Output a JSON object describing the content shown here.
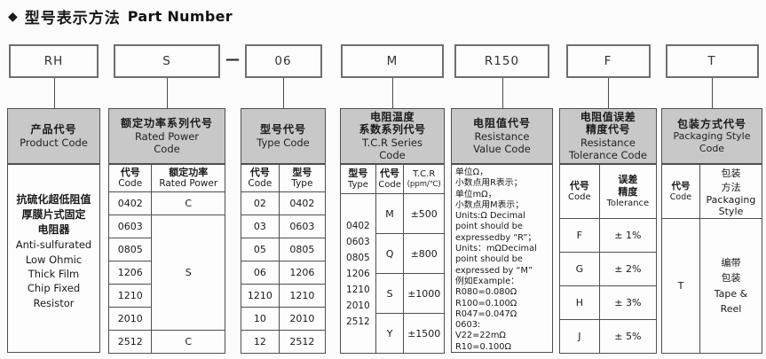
{
  "title": {
    "icon": "◆",
    "zh": "型号表示方法",
    "en": "Part Number"
  },
  "separator": "—",
  "colors": {
    "header_bg": "#c8c8c8",
    "border": "#4f4f4f",
    "page_bg": "#fcfcfc",
    "text": "#1a1a1a"
  },
  "columns": {
    "product": {
      "code": "RH",
      "header": {
        "zh": "产品代号",
        "en": "Product Code"
      },
      "body_lines": [
        "抗硫化超低阻值",
        "厚膜片式固定",
        "电阻器",
        "Anti-sulfurated",
        "Low Ohmic",
        "Thick Film",
        "Chip Fixed",
        "Resistor"
      ]
    },
    "rated_power": {
      "code": "S",
      "header": {
        "zh": "额定功率系列代号",
        "en1": "Rated Power",
        "en2": "Code"
      },
      "col_headers": {
        "code_zh": "代号",
        "code_en": "Code",
        "power_zh": "额定功率",
        "power_en": "Rated Power"
      },
      "rows": [
        {
          "code": "0402",
          "power": "C"
        },
        {
          "code": "0603"
        },
        {
          "code": "0805"
        },
        {
          "code": "1206"
        },
        {
          "code": "1210"
        },
        {
          "code": "2010"
        },
        {
          "code": "2512",
          "power": "C"
        }
      ],
      "merged_power": "S"
    },
    "type_code": {
      "code": "06",
      "header": {
        "zh": "型号代号",
        "en": "Type Code"
      },
      "col_headers": {
        "code_zh": "代号",
        "code_en": "Code",
        "type_zh": "型号",
        "type_en": "Type"
      },
      "rows": [
        {
          "code": "02",
          "type": "0402"
        },
        {
          "code": "03",
          "type": "0603"
        },
        {
          "code": "05",
          "type": "0805"
        },
        {
          "code": "06",
          "type": "1206"
        },
        {
          "code": "1210",
          "type": "1210"
        },
        {
          "code": "10",
          "type": "2010"
        },
        {
          "code": "12",
          "type": "2512"
        }
      ]
    },
    "tcr": {
      "code": "M",
      "header": {
        "zh1": "电阻温度",
        "zh2": "系数系列代号",
        "en1": "T.C.R Series",
        "en2": "Code"
      },
      "col_headers": {
        "type_zh": "型号",
        "type_en": "Type",
        "code_zh": "代号",
        "code_en": "Code",
        "tcr_label": "T.C.R",
        "tcr_unit": "(ppm/℃)"
      },
      "types": [
        "0402",
        "0603",
        "0805",
        "1206",
        "1210",
        "2010",
        "2512"
      ],
      "rows": [
        {
          "code": "M",
          "tcr": "±500"
        },
        {
          "code": "Q",
          "tcr": "±800"
        },
        {
          "code": "S",
          "tcr": "±1000"
        },
        {
          "code": "Y",
          "tcr": "±1500"
        }
      ]
    },
    "resistance_value": {
      "code": "R150",
      "header": {
        "zh": "电阻值代号",
        "en1": "Resistance",
        "en2": "Value Code"
      },
      "body_lines": [
        "单位Ω，",
        "小数点用R表示；",
        "单位mΩ，",
        "小数点用M表示；",
        "Units:Ω Decimal",
        "point should be",
        "expressedby “R”；",
        "Units：mΩDecimal",
        "point should be",
        "expressed by “M”",
        "例如Example：",
        "R080=0.080Ω",
        "R100=0.100Ω",
        "R047=0.047Ω",
        "0603:",
        "V22=22mΩ",
        "R10=0.100Ω"
      ]
    },
    "tolerance": {
      "code": "F",
      "header": {
        "zh1": "电阻值误差",
        "zh2": "精度代号",
        "en1": "Resistance",
        "en2": "Tolerance Code"
      },
      "col_headers": {
        "code_zh": "代号",
        "code_en": "Code",
        "tol_zh1": "误差",
        "tol_zh2": "精度",
        "tol_en": "Tolerance"
      },
      "rows": [
        {
          "code": "F",
          "tol": "± 1%"
        },
        {
          "code": "G",
          "tol": "± 2%"
        },
        {
          "code": "H",
          "tol": "± 3%"
        },
        {
          "code": "J",
          "tol": "± 5%"
        }
      ]
    },
    "packaging": {
      "code": "T",
      "header": {
        "zh": "包装方式代号",
        "en1": "Packaging Style",
        "en2": "Code"
      },
      "col_headers": {
        "code_zh": "代号",
        "code_en": "Code",
        "style_lines": [
          "包装",
          "方法",
          "Packaging",
          "Style"
        ]
      },
      "row": {
        "code": "T",
        "style_lines": [
          "编带",
          "包装",
          "Tape &",
          "Reel"
        ]
      }
    }
  }
}
